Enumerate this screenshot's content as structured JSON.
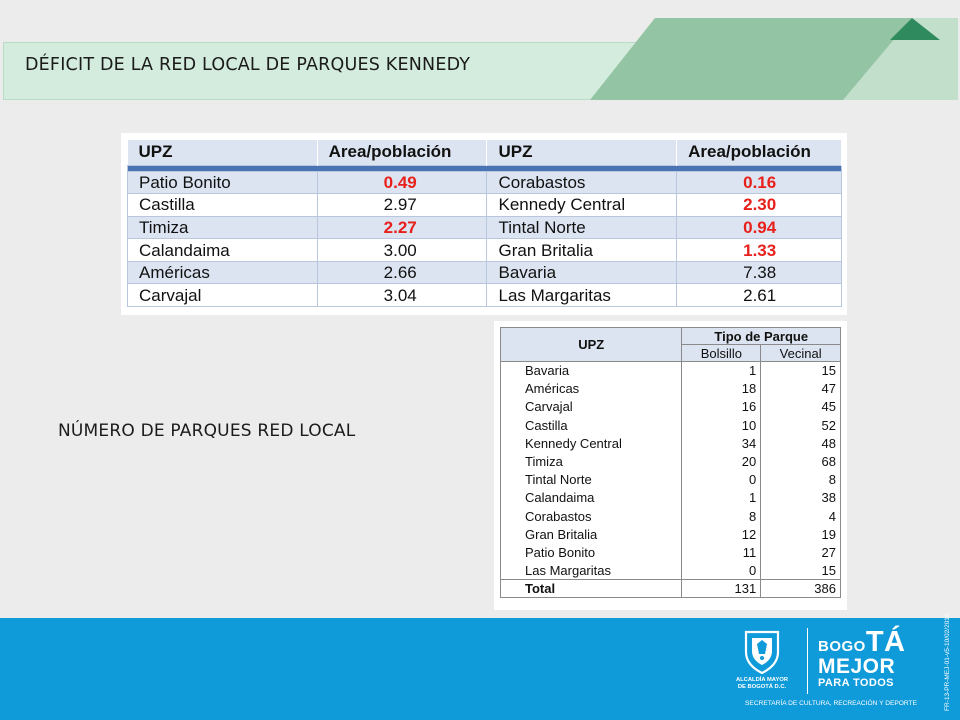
{
  "header": {
    "title": "DÉFICIT DE LA RED LOCAL DE PARQUES KENNEDY",
    "band_color": "#d3ecde",
    "accent_colors": [
      "#93c4a3",
      "#c2dfcb",
      "#2f8a5e"
    ]
  },
  "deficit_table": {
    "headers": [
      "UPZ",
      "Area/población",
      "UPZ",
      "Area/población"
    ],
    "rows": [
      {
        "upz_a": "Patio Bonito",
        "val_a": "0.49",
        "low_a": true,
        "upz_b": "Corabastos",
        "val_b": "0.16",
        "low_b": true
      },
      {
        "upz_a": "Castilla",
        "val_a": "2.97",
        "low_a": false,
        "upz_b": "Kennedy Central",
        "val_b": "2.30",
        "low_b": true
      },
      {
        "upz_a": "Timiza",
        "val_a": "2.27",
        "low_a": true,
        "upz_b": "Tintal Norte",
        "val_b": "0.94",
        "low_b": true
      },
      {
        "upz_a": "Calandaima",
        "val_a": "3.00",
        "low_a": false,
        "upz_b": "Gran Britalia",
        "val_b": "1.33",
        "low_b": true
      },
      {
        "upz_a": "Américas",
        "val_a": "2.66",
        "low_a": false,
        "upz_b": "Bavaria",
        "val_b": "7.38",
        "low_b": false
      },
      {
        "upz_a": "Carvajal",
        "val_a": "3.04",
        "low_a": false,
        "upz_b": "Las Margaritas",
        "val_b": "2.61",
        "low_b": false
      }
    ],
    "highlight_color": "#e8201c",
    "header_rule_color": "#4a73b3"
  },
  "section_label": "NÚMERO DE PARQUES RED LOCAL",
  "parks_table": {
    "upz_header": "UPZ",
    "group_header": "Tipo de Parque",
    "sub_headers": [
      "Bolsillo",
      "Vecinal"
    ],
    "rows": [
      {
        "upz": "Bavaria",
        "bolsillo": "1",
        "vecinal": "15"
      },
      {
        "upz": "Américas",
        "bolsillo": "18",
        "vecinal": "47"
      },
      {
        "upz": "Carvajal",
        "bolsillo": "16",
        "vecinal": "45"
      },
      {
        "upz": "Castilla",
        "bolsillo": "10",
        "vecinal": "52"
      },
      {
        "upz": "Kennedy Central",
        "bolsillo": "34",
        "vecinal": "48"
      },
      {
        "upz": "Timiza",
        "bolsillo": "20",
        "vecinal": "68"
      },
      {
        "upz": "Tintal Norte",
        "bolsillo": "0",
        "vecinal": "8"
      },
      {
        "upz": "Calandaima",
        "bolsillo": "1",
        "vecinal": "38"
      },
      {
        "upz": "Corabastos",
        "bolsillo": "8",
        "vecinal": "4"
      },
      {
        "upz": "Gran Britalia",
        "bolsillo": "12",
        "vecinal": "19"
      },
      {
        "upz": "Patio Bonito",
        "bolsillo": "11",
        "vecinal": "27"
      },
      {
        "upz": "Las Margaritas",
        "bolsillo": "0",
        "vecinal": "15"
      }
    ],
    "total": {
      "label": "Total",
      "bolsillo": "131",
      "vecinal": "386"
    }
  },
  "footer": {
    "background": "#0f9ad9",
    "alcaldia_line1": "ALCALDÍA MAYOR",
    "alcaldia_line2": "DE BOGOTÁ D.C.",
    "bogota_small": "BOGO",
    "bogota_big": "TÁ",
    "mejor": "MEJOR",
    "para_todos": "PARA TODOS",
    "secretaria": "SECRETARÍA DE CULTURA, RECREACIÓN Y DEPORTE",
    "doc_ref": "FR-13-PR-MEJ-01-v5-10/02/2016"
  }
}
